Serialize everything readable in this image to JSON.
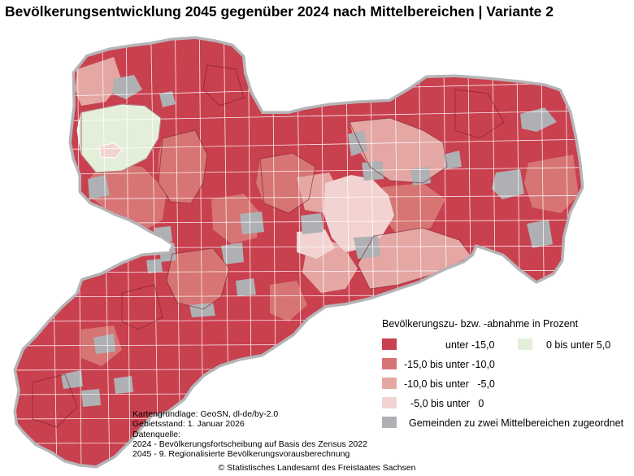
{
  "title": "Bevölkerungsentwicklung 2045 gegenüber 2024 nach Mittelbereichen | Variante 2",
  "legend": {
    "title": "Bevölkerungszu- bzw. -abnahme in Prozent",
    "items": [
      {
        "label": "unter -15,0",
        "color": "#c9404f"
      },
      {
        "label": "-15,0 bis unter -10,0",
        "color": "#d67573"
      },
      {
        "label": "-10,0 bis unter   -5,0",
        "color": "#e4a7a4"
      },
      {
        "label": "-5,0 bis unter   0",
        "color": "#f2d3d1"
      },
      {
        "label": "0 bis unter 5,0",
        "color": "#e4efd9"
      },
      {
        "label": "Gemeinden zu zwei Mittelbereichen zugeordnet",
        "color": "#aeb0b3"
      }
    ]
  },
  "sources": {
    "line1": "Kartengrundlage: GeoSN, dl-de/by-2.0",
    "line2": "Gebietsstand: 1. Januar 2026",
    "line3": "Datenquelle:",
    "line4": "2024 - Bevölkerungsfortscheibung auf Basis des Zensus 2022",
    "line5": "2045 - 9. Regionalisierte Bevölkerungsvorausberechnung"
  },
  "copyright": "© Statistisches Landesamt des Freistaates Sachsen"
}
